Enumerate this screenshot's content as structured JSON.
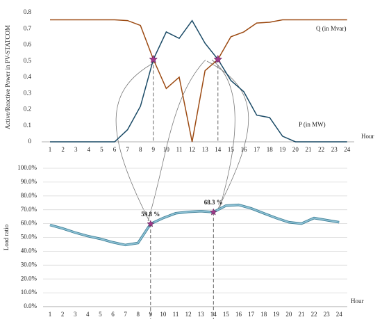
{
  "chart_data": [
    {
      "type": "line",
      "y_label": "Active/Reactive Power in PV-STATCOM",
      "x_label": "Hour",
      "categories": [
        1,
        2,
        3,
        4,
        5,
        6,
        7,
        8,
        9,
        10,
        11,
        12,
        13,
        14,
        15,
        16,
        17,
        18,
        19,
        20,
        21,
        22,
        23,
        24
      ],
      "series": [
        {
          "name": "Q (in Mvar)",
          "color": "#9c4a12",
          "values": [
            0.755,
            0.755,
            0.755,
            0.755,
            0.755,
            0.755,
            0.75,
            0.72,
            0.51,
            0.33,
            0.4,
            0,
            0.44,
            0.51,
            0.65,
            0.68,
            0.735,
            0.74,
            0.755,
            0.755,
            0.755,
            0.755,
            0.755,
            0.755
          ]
        },
        {
          "name": "P (in MW)",
          "color": "#1a4a66",
          "values": [
            0,
            0,
            0,
            0,
            0,
            0,
            0.075,
            0.22,
            0.51,
            0.68,
            0.64,
            0.75,
            0.61,
            0.51,
            0.38,
            0.31,
            0.165,
            0.15,
            0.035,
            0,
            0,
            0,
            0,
            0
          ]
        }
      ],
      "ylim": [
        0,
        0.8
      ],
      "yticks": [
        0,
        0.1,
        0.2,
        0.3,
        0.4,
        0.5,
        0.6,
        0.7,
        0.8
      ],
      "grid": false
    },
    {
      "type": "line",
      "y_label": "Load ratio",
      "x_label": "Hour",
      "categories": [
        1,
        2,
        3,
        4,
        5,
        6,
        7,
        8,
        9,
        10,
        11,
        12,
        13,
        14,
        15,
        16,
        17,
        18,
        19,
        20,
        21,
        22,
        23,
        24
      ],
      "series": [
        {
          "name": "Load ratio",
          "color": "#8fc3d6",
          "values": [
            59,
            56.5,
            53.5,
            51,
            49,
            46.5,
            44.5,
            46,
            59.8,
            64,
            67.5,
            68.5,
            69,
            68.3,
            73,
            73.5,
            71,
            67.5,
            64,
            61,
            60,
            64,
            62.5,
            61
          ],
          "value_labels": [
            null,
            null,
            null,
            null,
            null,
            null,
            null,
            null,
            "59.8 %",
            null,
            null,
            null,
            null,
            "68.3 %",
            null,
            null,
            null,
            null,
            null,
            null,
            null,
            null,
            null,
            null
          ]
        }
      ],
      "ylim": [
        0,
        100
      ],
      "yticks": [
        {
          "value": 0,
          "label": "0.0%"
        },
        {
          "value": 10,
          "label": "10.0%"
        },
        {
          "value": 20,
          "label": "20.0%"
        },
        {
          "value": 30,
          "label": "30.0%"
        },
        {
          "value": 40,
          "label": "40.0%"
        },
        {
          "value": 50,
          "label": "50.0%"
        },
        {
          "value": 60,
          "label": "60.0%"
        },
        {
          "value": 70,
          "label": "70.0%"
        },
        {
          "value": 80,
          "label": "80.0%"
        },
        {
          "value": 90,
          "label": "90.0%"
        },
        {
          "value": 100,
          "label": "100.0%"
        }
      ],
      "grid": true
    }
  ]
}
